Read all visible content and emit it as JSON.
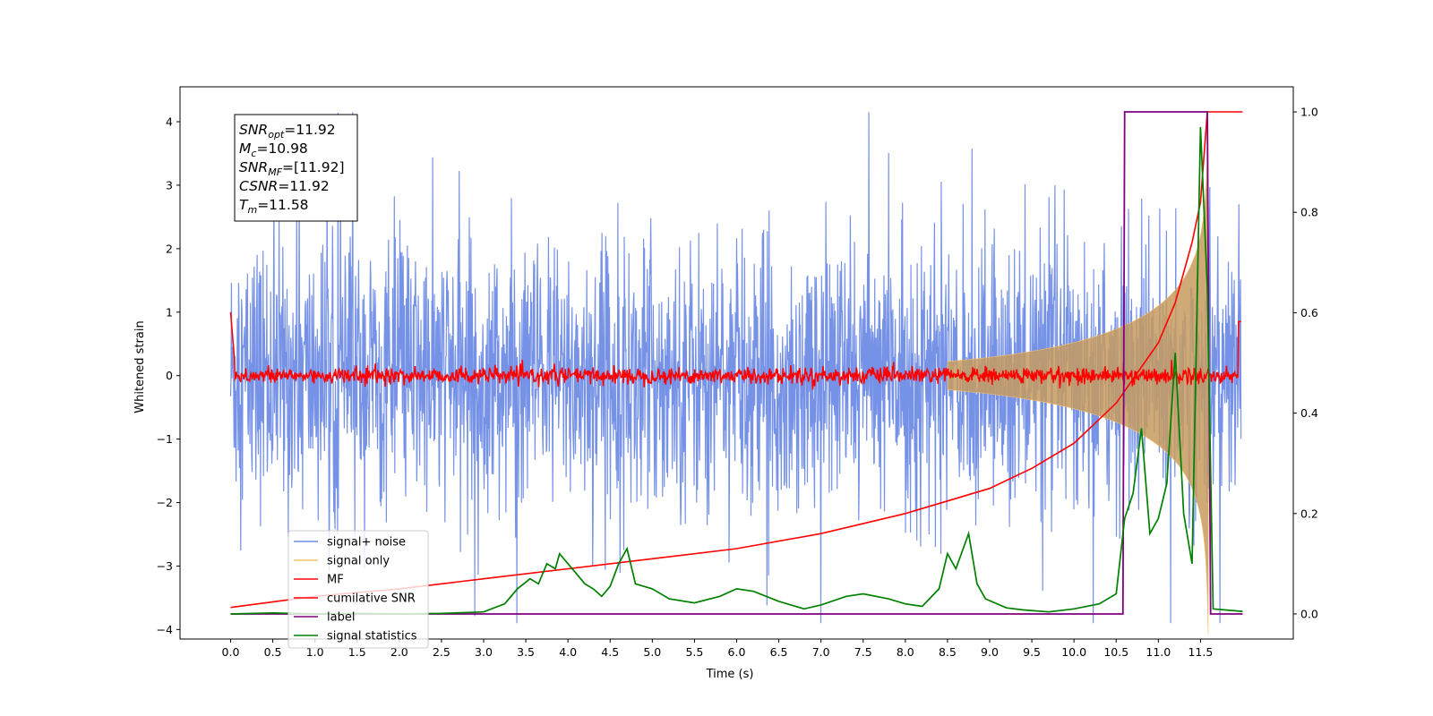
{
  "chart_data": {
    "type": "line",
    "xlabel": "Time (s)",
    "ylabel_left": "Whitened strain",
    "ylabel_right": "",
    "xlim": [
      -0.6,
      12.6
    ],
    "ylim_left": [
      -4.15,
      4.55
    ],
    "ylim_right": [
      -0.05,
      1.05
    ],
    "xticks": [
      "0.0",
      "0.5",
      "1.0",
      "1.5",
      "2.0",
      "2.5",
      "3.0",
      "3.5",
      "4.0",
      "4.5",
      "5.0",
      "5.5",
      "6.0",
      "6.5",
      "7.0",
      "7.5",
      "8.0",
      "8.5",
      "9.0",
      "9.5",
      "10.0",
      "10.5",
      "11.0",
      "11.5"
    ],
    "yticks_left": [
      "−4",
      "−3",
      "−2",
      "−1",
      "0",
      "1",
      "2",
      "3",
      "4"
    ],
    "yticks_right": [
      "0.0",
      "0.2",
      "0.4",
      "0.6",
      "0.8",
      "1.0"
    ],
    "info_box": [
      {
        "main": "SNR",
        "sub": "opt",
        "rest": "=11.92"
      },
      {
        "main": "M",
        "sub": "c",
        "rest": "=10.98"
      },
      {
        "main": "SNR",
        "sub": "MF",
        "rest": "=[11.92]"
      },
      {
        "main": "CSNR",
        "sub": "",
        "rest": "=11.92"
      },
      {
        "main": "T",
        "sub": "m",
        "rest": "=11.58"
      }
    ],
    "series": [
      {
        "name": "signal+ noise",
        "axis": "left",
        "color": "#6f8ce6",
        "description": "noise band roughly ±2 to ±4 whitened strain over 0–12 s"
      },
      {
        "name": "signal only",
        "axis": "left",
        "color": "#f5c06a",
        "description": "chirp, amplitude growing to ~0.7 near 11.58 s"
      },
      {
        "name": "MF",
        "axis": "left",
        "color": "#ff0000",
        "description": "matched-filter output near 0 (±0.2)"
      },
      {
        "name": "cumilative SNR",
        "axis": "right",
        "color": "#ff0000",
        "x": [
          0.0,
          1.0,
          2.0,
          3.0,
          4.0,
          5.0,
          6.0,
          7.0,
          8.0,
          9.0,
          9.5,
          10.0,
          10.5,
          11.0,
          11.2,
          11.4,
          11.5,
          11.58,
          12.0
        ],
        "values": [
          0.013,
          0.035,
          0.05,
          0.07,
          0.09,
          0.11,
          0.13,
          0.16,
          0.2,
          0.25,
          0.29,
          0.34,
          0.42,
          0.54,
          0.62,
          0.74,
          0.82,
          1.0,
          1.0
        ]
      },
      {
        "name": "label",
        "axis": "right",
        "color": "#800080",
        "x": [
          0.0,
          10.58,
          10.6,
          11.58,
          11.62,
          12.0
        ],
        "values": [
          0.0,
          0.0,
          1.0,
          1.0,
          0.0,
          0.0
        ]
      },
      {
        "name": "signal statistics",
        "axis": "right",
        "color": "#008000",
        "x": [
          0.0,
          0.5,
          1.0,
          1.5,
          2.0,
          2.5,
          3.0,
          3.25,
          3.4,
          3.55,
          3.65,
          3.75,
          3.85,
          3.9,
          4.0,
          4.1,
          4.2,
          4.3,
          4.4,
          4.5,
          4.6,
          4.7,
          4.8,
          5.0,
          5.2,
          5.5,
          5.8,
          6.0,
          6.2,
          6.5,
          6.8,
          7.0,
          7.3,
          7.5,
          7.8,
          8.0,
          8.2,
          8.4,
          8.5,
          8.6,
          8.75,
          8.85,
          8.95,
          9.2,
          9.4,
          9.7,
          10.0,
          10.3,
          10.5,
          10.6,
          10.7,
          10.8,
          10.9,
          11.0,
          11.1,
          11.2,
          11.3,
          11.4,
          11.5,
          11.58,
          11.65,
          12.0
        ],
        "values": [
          0.0,
          0.002,
          0.0,
          0.001,
          0.0,
          0.001,
          0.004,
          0.02,
          0.05,
          0.07,
          0.06,
          0.1,
          0.09,
          0.12,
          0.1,
          0.08,
          0.06,
          0.05,
          0.035,
          0.055,
          0.1,
          0.13,
          0.06,
          0.05,
          0.03,
          0.022,
          0.035,
          0.05,
          0.045,
          0.025,
          0.01,
          0.018,
          0.035,
          0.04,
          0.03,
          0.02,
          0.015,
          0.05,
          0.12,
          0.09,
          0.16,
          0.06,
          0.03,
          0.012,
          0.008,
          0.004,
          0.01,
          0.02,
          0.04,
          0.19,
          0.24,
          0.37,
          0.16,
          0.19,
          0.26,
          0.52,
          0.2,
          0.1,
          0.97,
          0.65,
          0.01,
          0.005
        ]
      }
    ],
    "legend": {
      "placement": "lower-left",
      "entries": [
        "signal+ noise",
        "signal only",
        "MF",
        "cumilative SNR",
        "label",
        "signal statistics"
      ]
    },
    "grid": false
  }
}
